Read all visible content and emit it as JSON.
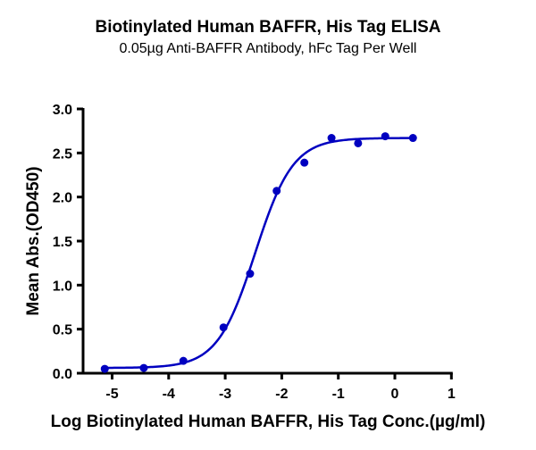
{
  "chart_data": {
    "type": "scatter",
    "title": "Biotinylated Human BAFFR, His Tag ELISA",
    "subtitle": "0.05µg Anti-BAFFR Antibody, hFc Tag Per Well",
    "xlabel": "Log Biotinylated Human BAFFR, His Tag Conc.(µg/ml)",
    "ylabel": "Mean Abs.(OD450)",
    "xlim": [
      -5.5,
      1
    ],
    "ylim": [
      0,
      3.0
    ],
    "xticks": [
      "-5",
      "-4",
      "-3",
      "-2",
      "-1",
      "0",
      "1"
    ],
    "yticks": [
      "0.0",
      "0.5",
      "1.0",
      "1.5",
      "2.0",
      "2.5",
      "3.0"
    ],
    "grid": false,
    "legend": null,
    "series": [
      {
        "name": "Biotinylated Human BAFFR, His Tag",
        "color": "#0000C0",
        "x": [
          -5.13,
          -4.44,
          -3.74,
          -3.03,
          -2.56,
          -2.09,
          -1.6,
          -1.12,
          -0.65,
          -0.17,
          0.32
        ],
        "y": [
          0.05,
          0.06,
          0.14,
          0.52,
          1.13,
          2.07,
          2.39,
          2.67,
          2.61,
          2.69,
          2.67
        ]
      }
    ],
    "fit": {
      "model": "4PL",
      "bottom": 0.06,
      "top": 2.67,
      "log_ec50": -2.47,
      "hill": 1.3
    }
  },
  "colors": {
    "series": "#0000C0",
    "axis": "#000000"
  }
}
